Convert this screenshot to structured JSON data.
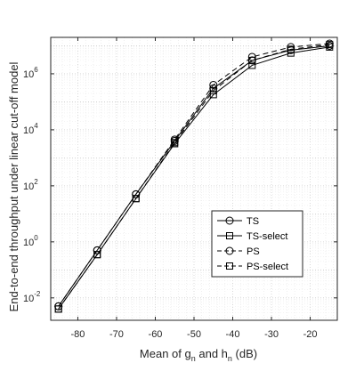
{
  "chart_data": {
    "type": "line",
    "xlabel": "Mean of g_n and h_n (dB)",
    "xlabel_parts": {
      "p1": "Mean of g",
      "s1": "n",
      "p2": " and h",
      "s2": "n",
      "p3": " (dB)"
    },
    "ylabel": "End-to-end throughput under linear cut-off model",
    "x": [
      -85,
      -75,
      -65,
      -55,
      -45,
      -35,
      -25,
      -15
    ],
    "xlim": [
      -87,
      -13
    ],
    "ylim_log10": [
      -2.8,
      7.3
    ],
    "yscale": "log",
    "grid": true,
    "xticks": [
      -80,
      -70,
      -60,
      -50,
      -40,
      -30,
      -20
    ],
    "xtick_labels": [
      "-80",
      "-70",
      "-60",
      "-50",
      "-40",
      "-30",
      "-20"
    ],
    "yticks_exp": [
      -2,
      0,
      2,
      4,
      6
    ],
    "ytick_labels": [
      "10",
      "10",
      "10",
      "10",
      "10"
    ],
    "ytick_exps": [
      "-2",
      "0",
      "2",
      "4",
      "6"
    ],
    "legend_position": "bottom-right",
    "series": [
      {
        "name": "TS",
        "marker": "circle",
        "dash": "solid",
        "values": [
          0.005,
          0.5,
          50,
          4000,
          300000,
          3000000,
          7000000,
          10000000
        ]
      },
      {
        "name": "TS-select",
        "marker": "square",
        "dash": "solid",
        "values": [
          0.004,
          0.35,
          35,
          3200,
          180000,
          2000000,
          5500000,
          9000000
        ]
      },
      {
        "name": "PS",
        "marker": "circle",
        "dash": "dashed",
        "values": [
          0.005,
          0.5,
          50,
          4500,
          400000,
          4000000,
          9000000,
          12000000
        ]
      },
      {
        "name": "PS-select",
        "marker": "square",
        "dash": "dashed",
        "values": [
          0.004,
          0.35,
          35,
          3500,
          250000,
          3000000,
          7500000,
          11000000
        ]
      }
    ]
  }
}
